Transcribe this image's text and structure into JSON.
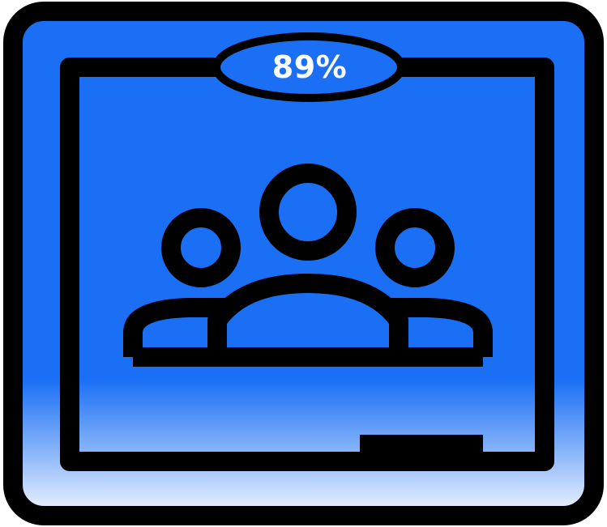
{
  "app_icon": {
    "name": "classroom-icon",
    "badge": {
      "label": "89%",
      "value_percent": 89
    },
    "colors": {
      "primary": "#1a6ff5",
      "outline": "#000000",
      "badge_text": "#ffffff",
      "gradient_bottom": "#f2f6ff"
    }
  }
}
